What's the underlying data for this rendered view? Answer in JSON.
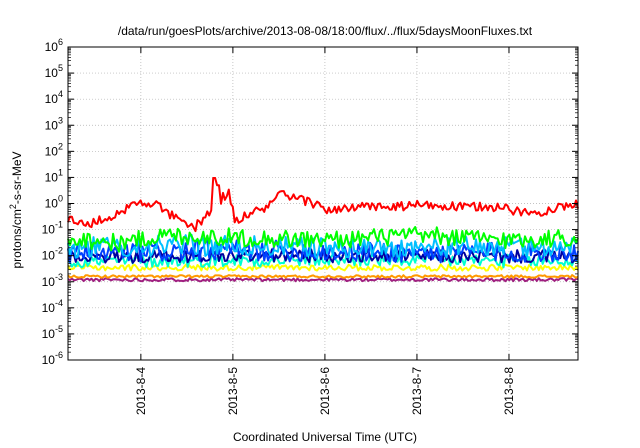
{
  "chart_data": {
    "type": "line",
    "title": "/data/run/goesPlots/archive/2013-08-08/18:00/flux/../flux/5daysMoonFluxes.txt",
    "xlabel": "Coordinated Universal Time (UTC)",
    "ylabel_parts": [
      "protons/cm",
      "2",
      "-s-sr-MeV"
    ],
    "yscale": "log",
    "ylim": [
      1e-06,
      1000000.0
    ],
    "xlim": [
      "2013-08-03 05:00",
      "2013-08-08 18:00"
    ],
    "grid": true,
    "yticks": [
      {
        "value": 1e-06,
        "base": "10",
        "exp": "-6"
      },
      {
        "value": 1e-05,
        "base": "10",
        "exp": "-5"
      },
      {
        "value": 0.0001,
        "base": "10",
        "exp": "-4"
      },
      {
        "value": 0.001,
        "base": "10",
        "exp": "-3"
      },
      {
        "value": 0.01,
        "base": "10",
        "exp": "-2"
      },
      {
        "value": 0.1,
        "base": "10",
        "exp": "-1"
      },
      {
        "value": 1.0,
        "base": "10",
        "exp": "0"
      },
      {
        "value": 10.0,
        "base": "10",
        "exp": "1"
      },
      {
        "value": 100.0,
        "base": "10",
        "exp": "2"
      },
      {
        "value": 1000.0,
        "base": "10",
        "exp": "3"
      },
      {
        "value": 10000.0,
        "base": "10",
        "exp": "4"
      },
      {
        "value": 100000.0,
        "base": "10",
        "exp": "5"
      },
      {
        "value": 1000000.0,
        "base": "10",
        "exp": "6"
      }
    ],
    "xticks": [
      {
        "date": "2013-08-04",
        "label": "2013-8-4"
      },
      {
        "date": "2013-08-05",
        "label": "2013-8-5"
      },
      {
        "date": "2013-08-06",
        "label": "2013-8-6"
      },
      {
        "date": "2013-08-07",
        "label": "2013-8-7"
      },
      {
        "date": "2013-08-08",
        "label": "2013-8-8"
      }
    ],
    "series": [
      {
        "color": "#ff0000",
        "baseline": 0.55,
        "noise": 0.18,
        "points": [
          [
            "2013-08-03 05:00",
            0.25
          ],
          [
            "2013-08-03 10:00",
            0.15
          ],
          [
            "2013-08-03 16:00",
            0.3
          ],
          [
            "2013-08-03 22:00",
            0.9
          ],
          [
            "2013-08-04 02:00",
            1.2
          ],
          [
            "2013-08-04 06:00",
            0.6
          ],
          [
            "2013-08-04 10:00",
            0.2
          ],
          [
            "2013-08-04 14:00",
            0.12
          ],
          [
            "2013-08-04 18:00",
            0.5
          ],
          [
            "2013-08-04 21:00",
            1.5
          ],
          [
            "2013-08-04 23:00",
            3.0
          ],
          [
            "2013-08-05 00:30",
            0.2
          ],
          [
            "2013-08-05 04:00",
            0.4
          ],
          [
            "2013-08-05 08:00",
            0.6
          ],
          [
            "2013-08-05 12:00",
            2.0
          ],
          [
            "2013-08-05 16:00",
            1.5
          ],
          [
            "2013-08-05 20:00",
            1.2
          ],
          [
            "2013-08-06 00:00",
            0.6
          ],
          [
            "2013-08-06 06:00",
            0.6
          ],
          [
            "2013-08-06 12:00",
            0.8
          ],
          [
            "2013-08-06 18:00",
            0.7
          ],
          [
            "2013-08-07 00:00",
            0.9
          ],
          [
            "2013-08-07 06:00",
            0.8
          ],
          [
            "2013-08-07 12:00",
            0.7
          ],
          [
            "2013-08-07 18:00",
            0.8
          ],
          [
            "2013-08-08 00:00",
            0.6
          ],
          [
            "2013-08-08 06:00",
            0.4
          ],
          [
            "2013-08-08 12:00",
            0.7
          ],
          [
            "2013-08-08 18:00",
            0.9
          ]
        ],
        "spikes": [
          [
            "2013-08-04 19:00",
            9.5
          ],
          [
            "2013-08-04 20:00",
            5.0
          ],
          [
            "2013-08-05 13:00",
            3.0
          ],
          [
            "2013-08-05 14:00",
            2.0
          ]
        ]
      },
      {
        "color": "#00ff00",
        "baseline": 0.045,
        "noise": 0.35,
        "points": [
          [
            "2013-08-03 05:00",
            0.05
          ],
          [
            "2013-08-03 18:00",
            0.03
          ],
          [
            "2013-08-04 06:00",
            0.06
          ],
          [
            "2013-08-05 00:00",
            0.05
          ],
          [
            "2013-08-06 00:00",
            0.04
          ],
          [
            "2013-08-07 00:00",
            0.06
          ],
          [
            "2013-08-08 00:00",
            0.04
          ],
          [
            "2013-08-08 18:00",
            0.05
          ]
        ]
      },
      {
        "color": "#00bfff",
        "baseline": 0.022,
        "noise": 0.4,
        "points": [
          [
            "2013-08-03 05:00",
            0.02
          ],
          [
            "2013-08-04 12:00",
            0.025
          ],
          [
            "2013-08-06 00:00",
            0.02
          ],
          [
            "2013-08-08 18:00",
            0.022
          ]
        ]
      },
      {
        "color": "#0040ff",
        "baseline": 0.014,
        "noise": 0.4,
        "points": [
          [
            "2013-08-03 05:00",
            0.012
          ],
          [
            "2013-08-05 00:00",
            0.016
          ],
          [
            "2013-08-07 00:00",
            0.013
          ],
          [
            "2013-08-08 18:00",
            0.014
          ]
        ]
      },
      {
        "color": "#0000a0",
        "baseline": 0.009,
        "noise": 0.25,
        "points": [
          [
            "2013-08-03 05:00",
            0.009
          ],
          [
            "2013-08-05 12:00",
            0.01
          ],
          [
            "2013-08-08 18:00",
            0.009
          ]
        ]
      },
      {
        "color": "#00ffd0",
        "baseline": 0.006,
        "noise": 0.25,
        "points": [
          [
            "2013-08-03 05:00",
            0.006
          ],
          [
            "2013-08-06 00:00",
            0.007
          ],
          [
            "2013-08-08 18:00",
            0.006
          ]
        ]
      },
      {
        "color": "#ffff00",
        "baseline": 0.0035,
        "noise": 0.12,
        "points": [
          [
            "2013-08-03 05:00",
            0.0035
          ],
          [
            "2013-08-08 18:00",
            0.0035
          ]
        ]
      },
      {
        "color": "#ff9900",
        "baseline": 0.0016,
        "noise": 0.05,
        "points": [
          [
            "2013-08-03 05:00",
            0.0016
          ],
          [
            "2013-08-08 18:00",
            0.0016
          ]
        ]
      },
      {
        "color": "#a02080",
        "baseline": 0.0012,
        "noise": 0.06,
        "points": [
          [
            "2013-08-03 05:00",
            0.0012
          ],
          [
            "2013-08-08 18:00",
            0.0012
          ]
        ]
      }
    ]
  }
}
